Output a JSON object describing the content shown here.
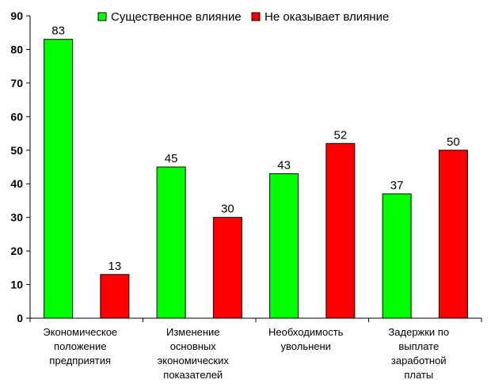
{
  "chart_data": {
    "type": "bar",
    "title": "",
    "xlabel": "",
    "ylabel": "",
    "ylim": [
      0,
      90
    ],
    "yticks": [
      0,
      10,
      20,
      30,
      40,
      50,
      60,
      70,
      80,
      90
    ],
    "grid": false,
    "legend_position": "top",
    "categories": [
      [
        "Экономическое",
        "положение",
        "предприятия"
      ],
      [
        "Изменение",
        "основных",
        "экономических",
        "показателей"
      ],
      [
        "Необходимость",
        "увольнени"
      ],
      [
        "Задержки по",
        "выплате",
        "заработной",
        "платы"
      ]
    ],
    "series": [
      {
        "name": "Существенное влияние",
        "color": "#00ff00",
        "values": [
          83,
          45,
          43,
          37
        ]
      },
      {
        "name": "Не оказывает влияние",
        "color": "#ff0000",
        "values": [
          13,
          30,
          52,
          50
        ]
      }
    ]
  }
}
